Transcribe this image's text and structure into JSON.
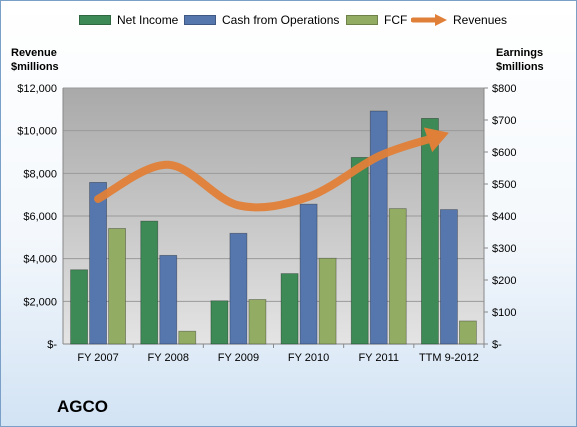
{
  "colors": {
    "net_income": "#3e8a56",
    "cash_from_operations": "#5677ae",
    "fcf": "#93ac64",
    "revenues": "#e07f38",
    "plot_bg": "#c6c6c6"
  },
  "legend": {
    "net_income": "Net Income",
    "cash_from_operations": "Cash from Operations",
    "fcf": "FCF",
    "revenues": "Revenues"
  },
  "left_axis_title": {
    "line1": "Revenue",
    "line2": "$millions"
  },
  "right_axis_title": {
    "line1": "Earnings",
    "line2": "$millions"
  },
  "company_label": "AGCO",
  "chart_data": {
    "type": "bar",
    "categories": [
      "FY 2007",
      "FY 2008",
      "FY 2009",
      "FY 2010",
      "FY 2011",
      "TTM 9-2012"
    ],
    "left_axis": {
      "ylim": [
        0,
        12000
      ],
      "ticks": [
        "$-",
        "$2,000",
        "$4,000",
        "$6,000",
        "$8,000",
        "$10,000",
        "$12,000"
      ]
    },
    "right_axis": {
      "ylim": [
        0,
        800
      ],
      "ticks": [
        "$-",
        "$100",
        "$200",
        "$300",
        "$400",
        "$500",
        "$600",
        "$700",
        "$800"
      ]
    },
    "series": [
      {
        "name": "Net Income",
        "axis": "right",
        "type": "bar",
        "values": [
          232,
          384,
          135,
          220,
          583,
          705
        ]
      },
      {
        "name": "Cash from Operations",
        "axis": "right",
        "type": "bar",
        "values": [
          505,
          277,
          346,
          437,
          728,
          420
        ]
      },
      {
        "name": "FCF",
        "axis": "right",
        "type": "bar",
        "values": [
          361,
          40,
          139,
          268,
          423,
          72
        ]
      },
      {
        "name": "Revenues",
        "axis": "left",
        "type": "line",
        "values": [
          6800,
          8400,
          6500,
          6900,
          8800,
          9900
        ]
      }
    ],
    "grid": true,
    "legend_position": "top"
  }
}
